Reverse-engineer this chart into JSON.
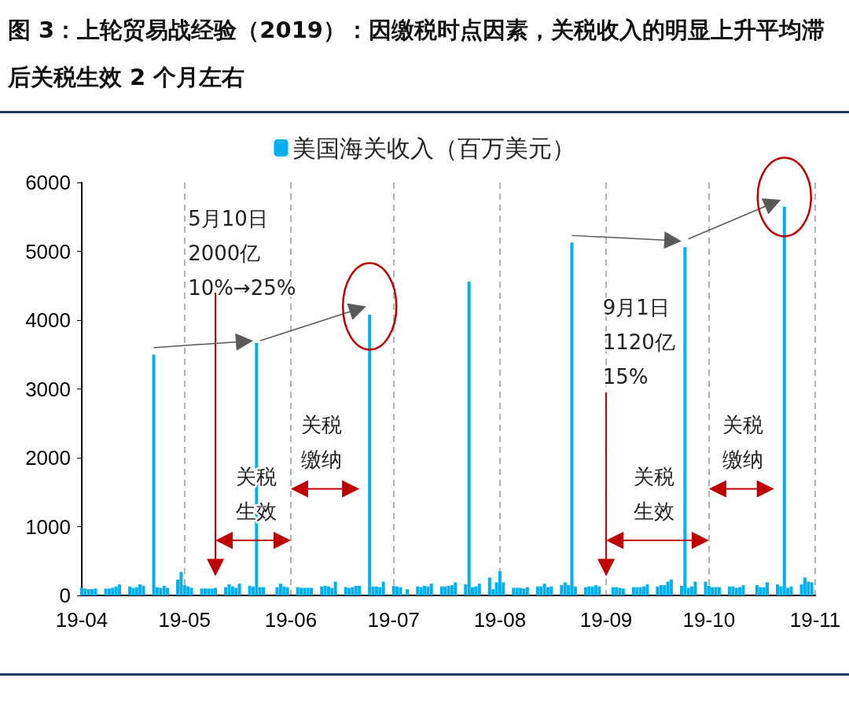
{
  "chart_data": {
    "type": "bar",
    "title": "图 3：上轮贸易战经验（2019）：因缴税时点因素，关税收入的明显上升平均滞后关税生效 2 个月左右",
    "legend": "top",
    "grid": "x",
    "xlim": [
      "2019-04-01",
      "2019-11-01"
    ],
    "xticks": [
      {
        "value": "2019-04-01",
        "label": "19-04"
      },
      {
        "value": "2019-05-01",
        "label": "19-05"
      },
      {
        "value": "2019-06-01",
        "label": "19-06"
      },
      {
        "value": "2019-07-01",
        "label": "19-07"
      },
      {
        "value": "2019-08-01",
        "label": "19-08"
      },
      {
        "value": "2019-09-01",
        "label": "19-09"
      },
      {
        "value": "2019-10-01",
        "label": "19-10"
      },
      {
        "value": "2019-11-01",
        "label": "19-11"
      }
    ],
    "ylim": [
      0,
      6000
    ],
    "yticks": [
      0,
      1000,
      2000,
      3000,
      4000,
      5000,
      6000
    ],
    "annotations": [
      "5月10日\n2000亿\n10%→25%",
      "关税生效",
      "关税缴纳",
      "9月1日\n1120亿\n15%",
      "关税生效",
      "关税缴纳"
    ],
    "series": [
      {
        "name": "美国海关收入（百万美元）",
        "color": "#00b0f0",
        "x": [
          "2019-04-01",
          "2019-04-02",
          "2019-04-03",
          "2019-04-04",
          "2019-04-05",
          "2019-04-08",
          "2019-04-09",
          "2019-04-10",
          "2019-04-11",
          "2019-04-12",
          "2019-04-15",
          "2019-04-16",
          "2019-04-17",
          "2019-04-18",
          "2019-04-19",
          "2019-04-22",
          "2019-04-23",
          "2019-04-24",
          "2019-04-25",
          "2019-04-26",
          "2019-04-29",
          "2019-04-30",
          "2019-05-01",
          "2019-05-02",
          "2019-05-03",
          "2019-05-06",
          "2019-05-07",
          "2019-05-08",
          "2019-05-09",
          "2019-05-10",
          "2019-05-13",
          "2019-05-14",
          "2019-05-15",
          "2019-05-16",
          "2019-05-17",
          "2019-05-20",
          "2019-05-21",
          "2019-05-22",
          "2019-05-23",
          "2019-05-24",
          "2019-05-28",
          "2019-05-29",
          "2019-05-30",
          "2019-05-31",
          "2019-06-03",
          "2019-06-04",
          "2019-06-05",
          "2019-06-06",
          "2019-06-07",
          "2019-06-10",
          "2019-06-11",
          "2019-06-12",
          "2019-06-13",
          "2019-06-14",
          "2019-06-17",
          "2019-06-18",
          "2019-06-19",
          "2019-06-20",
          "2019-06-21",
          "2019-06-24",
          "2019-06-25",
          "2019-06-26",
          "2019-06-27",
          "2019-06-28",
          "2019-07-01",
          "2019-07-02",
          "2019-07-03",
          "2019-07-05",
          "2019-07-08",
          "2019-07-09",
          "2019-07-10",
          "2019-07-11",
          "2019-07-12",
          "2019-07-15",
          "2019-07-16",
          "2019-07-17",
          "2019-07-18",
          "2019-07-19",
          "2019-07-22",
          "2019-07-23",
          "2019-07-24",
          "2019-07-25",
          "2019-07-26",
          "2019-07-29",
          "2019-07-30",
          "2019-07-31",
          "2019-08-01",
          "2019-08-02",
          "2019-08-05",
          "2019-08-06",
          "2019-08-07",
          "2019-08-08",
          "2019-08-09",
          "2019-08-12",
          "2019-08-13",
          "2019-08-14",
          "2019-08-15",
          "2019-08-16",
          "2019-08-19",
          "2019-08-20",
          "2019-08-21",
          "2019-08-22",
          "2019-08-23",
          "2019-08-26",
          "2019-08-27",
          "2019-08-28",
          "2019-08-29",
          "2019-08-30",
          "2019-09-03",
          "2019-09-04",
          "2019-09-05",
          "2019-09-06",
          "2019-09-09",
          "2019-09-10",
          "2019-09-11",
          "2019-09-12",
          "2019-09-13",
          "2019-09-16",
          "2019-09-17",
          "2019-09-18",
          "2019-09-19",
          "2019-09-20",
          "2019-09-23",
          "2019-09-24",
          "2019-09-25",
          "2019-09-26",
          "2019-09-27",
          "2019-09-30",
          "2019-10-01",
          "2019-10-02",
          "2019-10-03",
          "2019-10-04",
          "2019-10-07",
          "2019-10-08",
          "2019-10-09",
          "2019-10-10",
          "2019-10-11",
          "2019-10-15",
          "2019-10-16",
          "2019-10-17",
          "2019-10-18",
          "2019-10-21",
          "2019-10-22",
          "2019-10-23",
          "2019-10-24",
          "2019-10-25",
          "2019-10-28",
          "2019-10-29",
          "2019-10-30",
          "2019-10-31"
        ],
        "values": [
          110,
          100,
          90,
          90,
          100,
          100,
          100,
          110,
          130,
          160,
          130,
          110,
          120,
          160,
          140,
          3500,
          120,
          110,
          140,
          110,
          230,
          340,
          150,
          130,
          110,
          100,
          100,
          100,
          100,
          110,
          120,
          160,
          130,
          110,
          170,
          140,
          130,
          3670,
          120,
          120,
          120,
          170,
          130,
          120,
          120,
          110,
          110,
          110,
          110,
          130,
          140,
          130,
          110,
          200,
          120,
          110,
          120,
          140,
          140,
          4080,
          130,
          130,
          120,
          200,
          140,
          130,
          120,
          90,
          130,
          120,
          140,
          130,
          170,
          130,
          130,
          140,
          150,
          190,
          160,
          4560,
          120,
          130,
          170,
          260,
          90,
          190,
          350,
          190,
          110,
          110,
          110,
          100,
          120,
          130,
          130,
          170,
          120,
          130,
          150,
          190,
          150,
          5130,
          130,
          120,
          130,
          130,
          150,
          130,
          120,
          120,
          110,
          100,
          120,
          120,
          120,
          130,
          160,
          130,
          150,
          150,
          200,
          230,
          140,
          5060,
          110,
          130,
          200,
          200,
          140,
          120,
          120,
          120,
          130,
          130,
          110,
          120,
          150,
          150,
          120,
          120,
          190,
          160,
          130,
          5650,
          110,
          130,
          160,
          260,
          200,
          190
        ]
      }
    ]
  }
}
